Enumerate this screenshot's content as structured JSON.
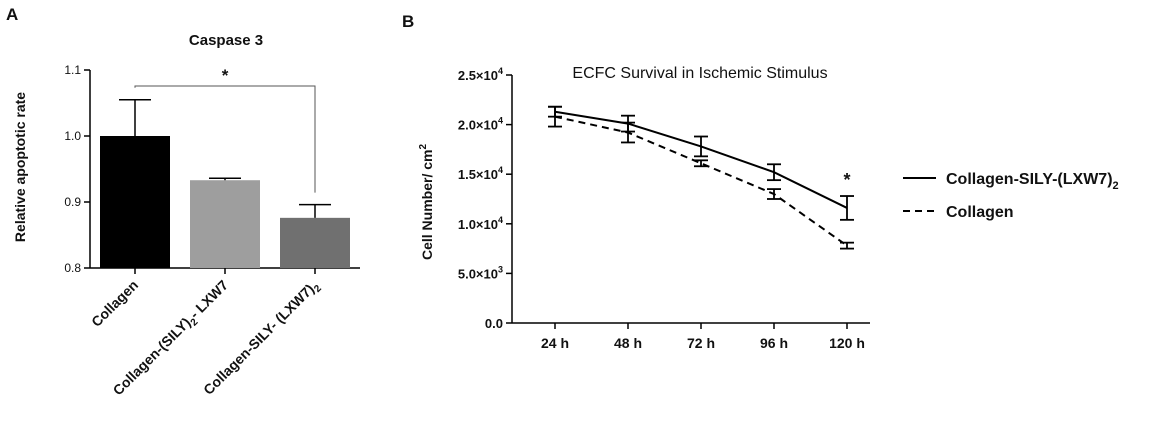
{
  "chart_data": [
    {
      "panel": "A",
      "type": "bar",
      "title": "Caspase 3",
      "ylabel": "Relative apoptotic rate",
      "ylim": [
        0.8,
        1.1
      ],
      "yticks": [
        "0.8",
        "0.9",
        "1.0",
        "1.1"
      ],
      "categories": [
        {
          "pre": "Collagen",
          "sub": "",
          "post": ""
        },
        {
          "pre": "Collagen-(SILY)",
          "sub": "2",
          "post": "- LXW7"
        },
        {
          "pre": "Collagen-SILY- (LXW7)",
          "sub": "2",
          "post": ""
        }
      ],
      "values": [
        1.0,
        0.933,
        0.876
      ],
      "errors": [
        0.055,
        0.003,
        0.02
      ],
      "bar_colors": [
        "#000000",
        "#9e9e9e",
        "#707070"
      ],
      "significance": {
        "between": [
          0,
          2
        ],
        "label": "*"
      }
    },
    {
      "panel": "B",
      "type": "line",
      "title": "ECFC Survival in Ischemic Stimulus",
      "ylabel": {
        "pre": "Cell Number/ cm",
        "sup": "2"
      },
      "ylim": [
        0,
        25000
      ],
      "yticks": [
        {
          "value": 0,
          "label": "0.0",
          "exp": ""
        },
        {
          "value": 5000,
          "label": "5.0×10",
          "exp": "3"
        },
        {
          "value": 10000,
          "label": "1.0×10",
          "exp": "4"
        },
        {
          "value": 15000,
          "label": "1.5×10",
          "exp": "4"
        },
        {
          "value": 20000,
          "label": "2.0×10",
          "exp": "4"
        },
        {
          "value": 25000,
          "label": "2.5×10",
          "exp": "4"
        }
      ],
      "categories": [
        "24 h",
        "48 h",
        "72 h",
        "96 h",
        "120 h"
      ],
      "series": [
        {
          "name": {
            "pre": "Collagen-SILY-(LXW7)",
            "sub": "2"
          },
          "dash": "solid",
          "values": [
            21300,
            20100,
            17800,
            15200,
            11600
          ],
          "errors": [
            500,
            800,
            1000,
            800,
            1200
          ]
        },
        {
          "name": {
            "pre": "Collagen",
            "sub": ""
          },
          "dash": "dashed",
          "values": [
            20800,
            19200,
            16100,
            13000,
            7800
          ],
          "errors": [
            1000,
            1000,
            300,
            500,
            300
          ]
        }
      ],
      "annotation": {
        "category_index": 4,
        "label": "*"
      }
    }
  ],
  "panel_labels": [
    "A",
    "B"
  ]
}
